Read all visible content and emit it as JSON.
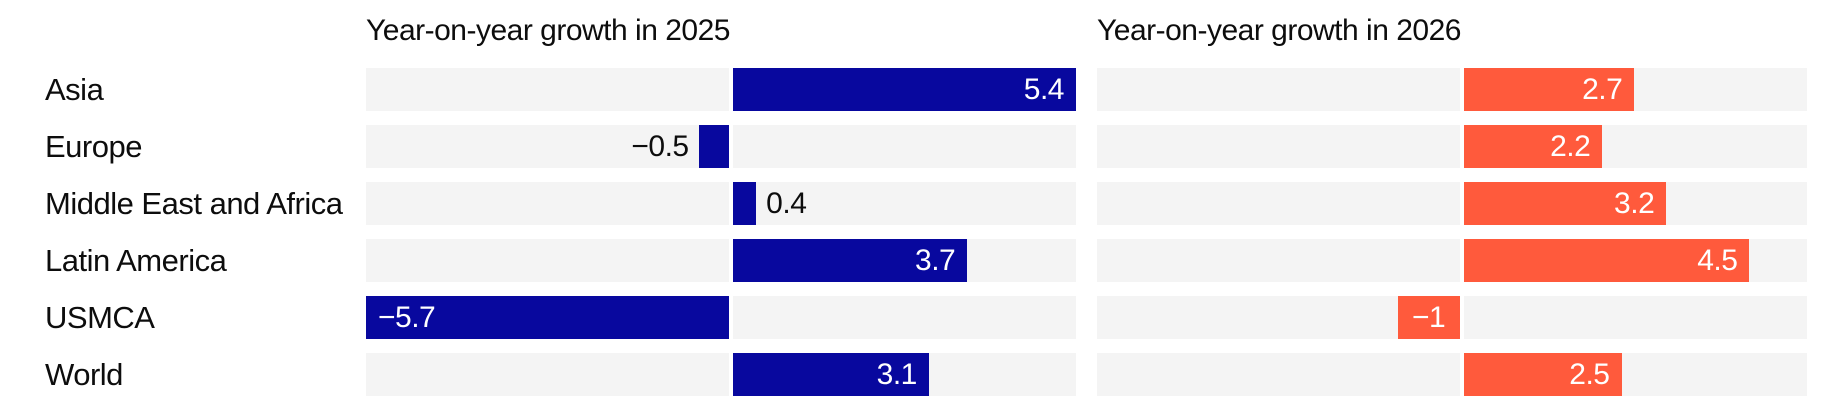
{
  "chart_data": {
    "type": "bar",
    "orientation": "horizontal",
    "categories": [
      "Asia",
      "Europe",
      "Middle East and Africa",
      "Latin America",
      "USMCA",
      "World"
    ],
    "series": [
      {
        "name": "Year-on-year growth in 2025",
        "color": "#08089e",
        "values": [
          5.4,
          -0.5,
          0.4,
          3.7,
          -5.7,
          3.1
        ],
        "labels": [
          "5.4",
          "−0.5",
          "0.4",
          "3.7",
          "−5.7",
          "3.1"
        ]
      },
      {
        "name": "Year-on-year growth in 2026",
        "color": "#ff5a3c",
        "values": [
          2.7,
          2.2,
          3.2,
          4.5,
          -1,
          2.5
        ],
        "labels": [
          "2.7",
          "2.2",
          "3.2",
          "4.5",
          "−1",
          "2.5"
        ]
      }
    ],
    "xlim": [
      -5.7,
      5.4
    ],
    "grid": false,
    "legend": "none",
    "band_color": "#f4f4f4",
    "value_label_color_inside": "#ffffff",
    "value_label_color_outside": "#0d0d0d"
  }
}
